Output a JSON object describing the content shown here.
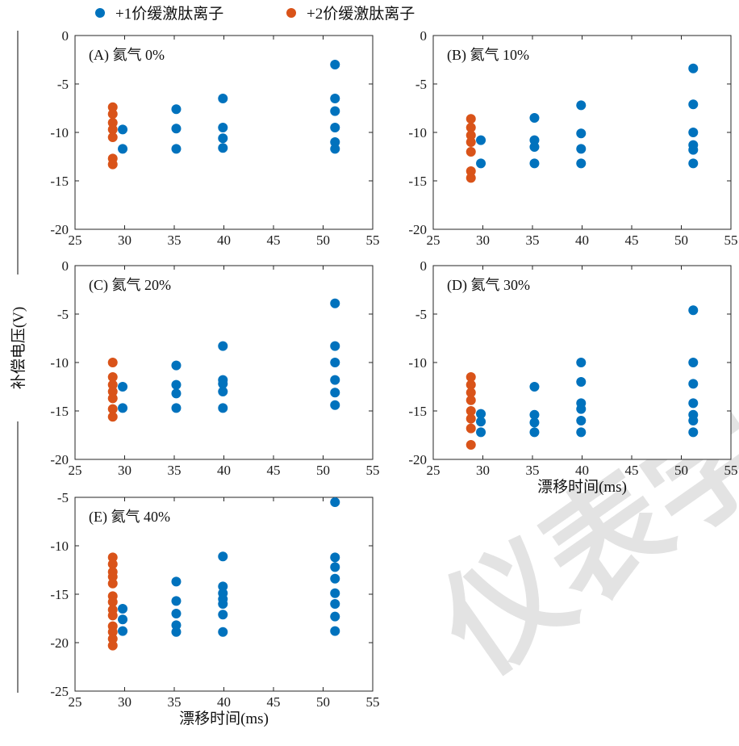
{
  "legend": {
    "items": [
      {
        "label": "+1价缓激肽离子",
        "color": "#0072BD"
      },
      {
        "label": "+2价缓激肽离子",
        "color": "#D95319"
      }
    ]
  },
  "y_axis_label": "补偿电压(V)",
  "x_axis_label": "漂移时间(ms)",
  "watermark": "仪表学",
  "chart_data": [
    {
      "type": "scatter",
      "title": "(A) 氦气 0%",
      "xlabel": "",
      "ylabel": "补偿电压(V)",
      "xlim": [
        25,
        55
      ],
      "ylim": [
        -20,
        0
      ],
      "xticks": [
        25,
        30,
        35,
        40,
        45,
        50,
        55
      ],
      "yticks": [
        0,
        -5,
        -10,
        -15,
        -20
      ],
      "series": [
        {
          "name": "+1价缓激肽离子",
          "color": "#0072BD",
          "points": [
            [
              29.8,
              -9.7
            ],
            [
              29.8,
              -11.7
            ],
            [
              35.2,
              -7.6
            ],
            [
              35.2,
              -9.6
            ],
            [
              35.2,
              -11.7
            ],
            [
              39.9,
              -6.5
            ],
            [
              39.9,
              -9.5
            ],
            [
              39.9,
              -10.6
            ],
            [
              39.9,
              -11.6
            ],
            [
              51.2,
              -3.0
            ],
            [
              51.2,
              -6.5
            ],
            [
              51.2,
              -7.8
            ],
            [
              51.2,
              -9.5
            ],
            [
              51.2,
              -11.0
            ],
            [
              51.2,
              -11.7
            ]
          ]
        },
        {
          "name": "+2价缓激肽离子",
          "color": "#D95319",
          "points": [
            [
              28.8,
              -7.4
            ],
            [
              28.8,
              -8.1
            ],
            [
              28.8,
              -9.0
            ],
            [
              28.8,
              -9.7
            ],
            [
              28.8,
              -10.5
            ],
            [
              28.8,
              -12.7
            ],
            [
              28.8,
              -13.3
            ]
          ]
        }
      ]
    },
    {
      "type": "scatter",
      "title": "(B) 氦气 10%",
      "xlabel": "",
      "ylabel": "",
      "xlim": [
        25,
        55
      ],
      "ylim": [
        -20,
        0
      ],
      "xticks": [
        25,
        30,
        35,
        40,
        45,
        50,
        55
      ],
      "yticks": [
        0,
        -5,
        -10,
        -15,
        -20
      ],
      "series": [
        {
          "name": "+1价缓激肽离子",
          "color": "#0072BD",
          "points": [
            [
              29.8,
              -10.8
            ],
            [
              29.8,
              -13.2
            ],
            [
              35.2,
              -8.5
            ],
            [
              35.2,
              -10.8
            ],
            [
              35.2,
              -11.5
            ],
            [
              35.2,
              -13.2
            ],
            [
              39.9,
              -7.2
            ],
            [
              39.9,
              -10.1
            ],
            [
              39.9,
              -11.7
            ],
            [
              39.9,
              -13.2
            ],
            [
              51.2,
              -3.4
            ],
            [
              51.2,
              -7.1
            ],
            [
              51.2,
              -10.0
            ],
            [
              51.2,
              -11.3
            ],
            [
              51.2,
              -11.8
            ],
            [
              51.2,
              -13.2
            ]
          ]
        },
        {
          "name": "+2价缓激肽离子",
          "color": "#D95319",
          "points": [
            [
              28.8,
              -8.6
            ],
            [
              28.8,
              -9.5
            ],
            [
              28.8,
              -10.3
            ],
            [
              28.8,
              -11.0
            ],
            [
              28.8,
              -12.0
            ],
            [
              28.8,
              -14.0
            ],
            [
              28.8,
              -14.7
            ]
          ]
        }
      ]
    },
    {
      "type": "scatter",
      "title": "(C) 氦气 20%",
      "xlabel": "",
      "ylabel": "",
      "xlim": [
        25,
        55
      ],
      "ylim": [
        -20,
        0
      ],
      "xticks": [
        25,
        30,
        35,
        40,
        45,
        50,
        55
      ],
      "yticks": [
        0,
        -5,
        -10,
        -15,
        -20
      ],
      "series": [
        {
          "name": "+1价缓激肽离子",
          "color": "#0072BD",
          "points": [
            [
              29.8,
              -12.5
            ],
            [
              29.8,
              -14.7
            ],
            [
              35.2,
              -10.3
            ],
            [
              35.2,
              -12.3
            ],
            [
              35.2,
              -13.2
            ],
            [
              35.2,
              -14.7
            ],
            [
              39.9,
              -8.3
            ],
            [
              39.9,
              -11.8
            ],
            [
              39.9,
              -12.2
            ],
            [
              39.9,
              -13.0
            ],
            [
              39.9,
              -14.7
            ],
            [
              51.2,
              -3.9
            ],
            [
              51.2,
              -8.3
            ],
            [
              51.2,
              -10.0
            ],
            [
              51.2,
              -11.8
            ],
            [
              51.2,
              -13.1
            ],
            [
              51.2,
              -14.4
            ]
          ]
        },
        {
          "name": "+2价缓激肽离子",
          "color": "#D95319",
          "points": [
            [
              28.8,
              -10.0
            ],
            [
              28.8,
              -11.5
            ],
            [
              28.8,
              -12.3
            ],
            [
              28.8,
              -13.0
            ],
            [
              28.8,
              -13.7
            ],
            [
              28.8,
              -14.8
            ],
            [
              28.8,
              -15.6
            ]
          ]
        }
      ]
    },
    {
      "type": "scatter",
      "title": "(D) 氦气 30%",
      "xlabel": "漂移时间(ms)",
      "ylabel": "",
      "xlim": [
        25,
        55
      ],
      "ylim": [
        -20,
        0
      ],
      "xticks": [
        25,
        30,
        35,
        40,
        45,
        50,
        55
      ],
      "yticks": [
        0,
        -5,
        -10,
        -15,
        -20
      ],
      "series": [
        {
          "name": "+1价缓激肽离子",
          "color": "#0072BD",
          "points": [
            [
              29.8,
              -15.3
            ],
            [
              29.8,
              -16.1
            ],
            [
              29.8,
              -17.2
            ],
            [
              35.2,
              -12.5
            ],
            [
              35.2,
              -15.4
            ],
            [
              35.2,
              -16.2
            ],
            [
              35.2,
              -17.2
            ],
            [
              39.9,
              -10.0
            ],
            [
              39.9,
              -12.0
            ],
            [
              39.9,
              -14.2
            ],
            [
              39.9,
              -14.8
            ],
            [
              39.9,
              -16.0
            ],
            [
              39.9,
              -17.2
            ],
            [
              51.2,
              -4.6
            ],
            [
              51.2,
              -10.0
            ],
            [
              51.2,
              -12.2
            ],
            [
              51.2,
              -14.2
            ],
            [
              51.2,
              -15.4
            ],
            [
              51.2,
              -16.0
            ],
            [
              51.2,
              -17.2
            ]
          ]
        },
        {
          "name": "+2价缓激肽离子",
          "color": "#D95319",
          "points": [
            [
              28.8,
              -11.5
            ],
            [
              28.8,
              -12.3
            ],
            [
              28.8,
              -13.1
            ],
            [
              28.8,
              -13.9
            ],
            [
              28.8,
              -15.0
            ],
            [
              28.8,
              -15.8
            ],
            [
              28.8,
              -16.8
            ],
            [
              28.8,
              -18.5
            ]
          ]
        }
      ]
    },
    {
      "type": "scatter",
      "title": "(E) 氦气 40%",
      "xlabel": "漂移时间(ms)",
      "ylabel": "",
      "xlim": [
        25,
        55
      ],
      "ylim": [
        -25,
        -5
      ],
      "xticks": [
        25,
        30,
        35,
        40,
        45,
        50,
        55
      ],
      "yticks": [
        -5,
        -10,
        -15,
        -20,
        -25
      ],
      "series": [
        {
          "name": "+1价缓激肽离子",
          "color": "#0072BD",
          "points": [
            [
              29.8,
              -16.5
            ],
            [
              29.8,
              -17.6
            ],
            [
              29.8,
              -18.8
            ],
            [
              35.2,
              -13.7
            ],
            [
              35.2,
              -15.7
            ],
            [
              35.2,
              -17.0
            ],
            [
              35.2,
              -18.2
            ],
            [
              35.2,
              -18.9
            ],
            [
              39.9,
              -11.1
            ],
            [
              39.9,
              -14.2
            ],
            [
              39.9,
              -14.9
            ],
            [
              39.9,
              -15.5
            ],
            [
              39.9,
              -16.0
            ],
            [
              39.9,
              -17.1
            ],
            [
              39.9,
              -18.9
            ],
            [
              51.2,
              -5.5
            ],
            [
              51.2,
              -11.2
            ],
            [
              51.2,
              -12.2
            ],
            [
              51.2,
              -13.4
            ],
            [
              51.2,
              -14.9
            ],
            [
              51.2,
              -16.0
            ],
            [
              51.2,
              -17.3
            ],
            [
              51.2,
              -18.8
            ]
          ]
        },
        {
          "name": "+2价缓激肽离子",
          "color": "#D95319",
          "points": [
            [
              28.8,
              -11.2
            ],
            [
              28.8,
              -11.9
            ],
            [
              28.8,
              -12.7
            ],
            [
              28.8,
              -13.2
            ],
            [
              28.8,
              -13.9
            ],
            [
              28.8,
              -15.2
            ],
            [
              28.8,
              -15.8
            ],
            [
              28.8,
              -16.6
            ],
            [
              28.8,
              -17.2
            ],
            [
              28.8,
              -18.3
            ],
            [
              28.8,
              -18.9
            ],
            [
              28.8,
              -19.6
            ],
            [
              28.8,
              -20.3
            ]
          ]
        }
      ]
    }
  ]
}
